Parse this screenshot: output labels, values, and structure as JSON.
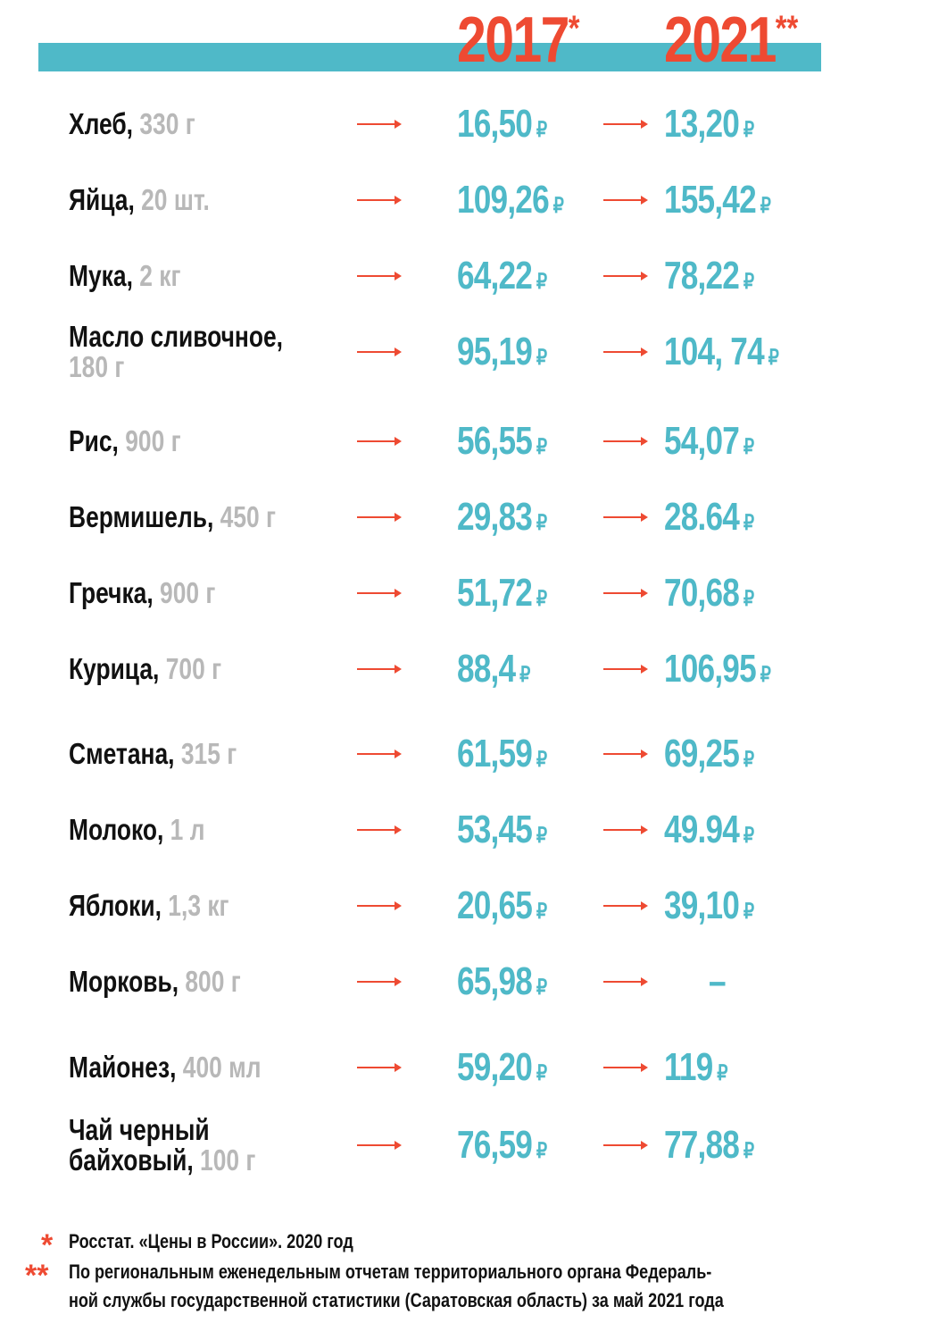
{
  "header": {
    "year_2017": "2017",
    "year_2017_mark": "*",
    "year_2021": "2021",
    "year_2021_mark": "**"
  },
  "currency": "₽",
  "rows": [
    {
      "name": "Хлеб",
      "sep": ", ",
      "qty": "330 г",
      "p2017": "16,50",
      "p2021": "13,20"
    },
    {
      "name": "Яйца",
      "sep": ", ",
      "qty": "20 шт.",
      "p2017": "109,26",
      "p2021": "155,42"
    },
    {
      "name": "Мука",
      "sep": ", ",
      "qty": "2 кг",
      "p2017": "64,22",
      "p2021": "78,22"
    },
    {
      "name": "Масло сливочное,",
      "sep": "",
      "qty": "180 г",
      "p2017": "95,19",
      "p2021": "104, 74"
    },
    {
      "name": "Рис",
      "sep": ", ",
      "qty": "900 г",
      "p2017": "56,55",
      "p2021": "54,07"
    },
    {
      "name": "Вермишель",
      "sep": ", ",
      "qty": "450 г",
      "p2017": "29,83",
      "p2021": "28.64"
    },
    {
      "name": "Гречка",
      "sep": ", ",
      "qty": "900 г",
      "p2017": "51,72",
      "p2021": "70,68"
    },
    {
      "name": "Курица",
      "sep": ", ",
      "qty": "700 г",
      "p2017": "88,4",
      "p2021": "106,95"
    },
    {
      "name": "Сметана",
      "sep": ", ",
      "qty": "315 г",
      "p2017": "61,59",
      "p2021": "69,25"
    },
    {
      "name": "Молоко",
      "sep": ", ",
      "qty": "1 л",
      "p2017": "53,45",
      "p2021": "49.94"
    },
    {
      "name": "Яблоки",
      "sep": ", ",
      "qty": "1,3 кг",
      "p2017": "20,65",
      "p2021": "39,10"
    },
    {
      "name": "Морковь",
      "sep": ", ",
      "qty": "800 г",
      "p2017": "65,98",
      "p2021": "–"
    },
    {
      "name": "Майонез",
      "sep": ", ",
      "qty": "400 мл",
      "p2017": "59,20",
      "p2021": "119"
    },
    {
      "name": "Чай черный",
      "name2": "байховый",
      "sep": ", ",
      "qty": "100 г",
      "p2017": "76,59",
      "p2021": "77,88"
    }
  ],
  "footnotes": [
    {
      "mark": "*",
      "lines": [
        "Росстат. «Цены в России». 2020 год"
      ]
    },
    {
      "mark": "**",
      "lines": [
        "По региональным еженедельным отчетам территориального органа Федераль-",
        "ной службы государственной статистики (Саратовская область) за май 2021 года"
      ]
    }
  ],
  "colors": {
    "accent": "#ee4a32",
    "teal": "#4fb9c8",
    "muted": "#b8b8b8",
    "text": "#111111"
  }
}
